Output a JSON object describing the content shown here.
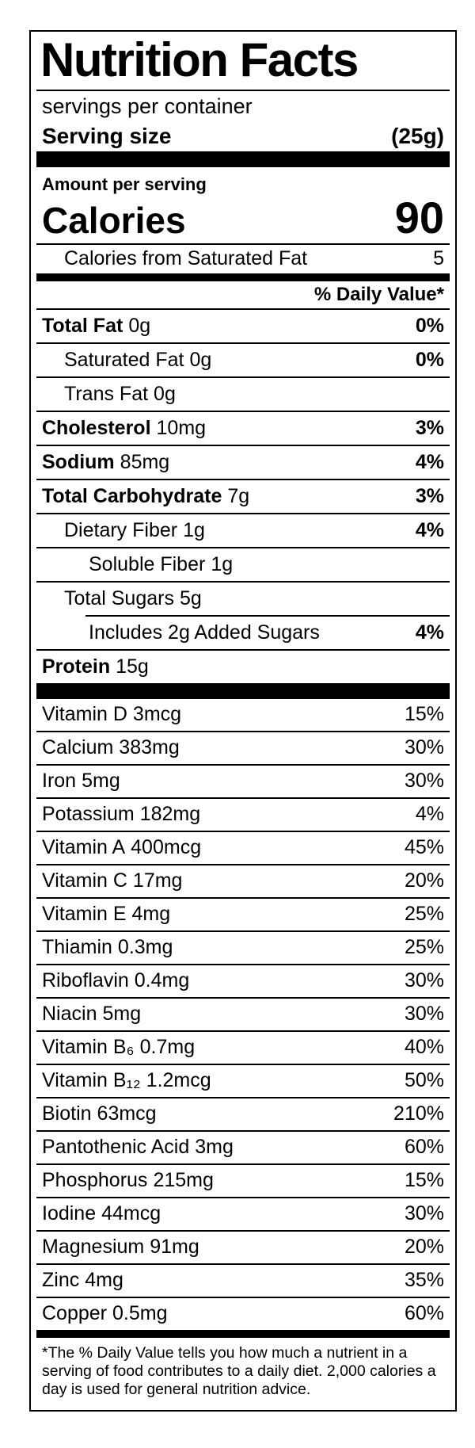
{
  "label": {
    "title": "Nutrition Facts",
    "servings_per_container": "servings per container",
    "serving_size_label": "Serving size",
    "serving_size_value": "(25g)",
    "amount_per_serving": "Amount per serving",
    "calories_label": "Calories",
    "calories_value": "90",
    "calories_sub_label": "Calories from Saturated Fat",
    "calories_sub_value": "5",
    "daily_value_header": "% Daily Value*",
    "nutrients": [
      {
        "name": "Total Fat",
        "amount": "0g",
        "dv": "0%",
        "bold": true,
        "indent": 0
      },
      {
        "name": "Saturated Fat",
        "amount": "0g",
        "dv": "0%",
        "bold": false,
        "indent": 1
      },
      {
        "name": "Trans Fat",
        "amount": "0g",
        "dv": "",
        "bold": false,
        "indent": 1
      },
      {
        "name": "Cholesterol",
        "amount": "10mg",
        "dv": "3%",
        "bold": true,
        "indent": 0
      },
      {
        "name": "Sodium",
        "amount": "85mg",
        "dv": "4%",
        "bold": true,
        "indent": 0
      },
      {
        "name": "Total Carbohydrate",
        "amount": "7g",
        "dv": "3%",
        "bold": true,
        "indent": 0
      },
      {
        "name": "Dietary Fiber",
        "amount": "1g",
        "dv": "4%",
        "bold": false,
        "indent": 1
      },
      {
        "name": "Soluble Fiber",
        "amount": "1g",
        "dv": "",
        "bold": false,
        "indent": 2
      },
      {
        "name": "Total Sugars",
        "amount": "5g",
        "dv": "",
        "bold": false,
        "indent": 1
      },
      {
        "name": "Includes 2g Added Sugars",
        "amount": "",
        "dv": "4%",
        "bold": false,
        "indent": 2,
        "partial_rule": true
      },
      {
        "name": "Protein",
        "amount": "15g",
        "dv": "",
        "bold": true,
        "indent": 0
      }
    ],
    "micronutrients": [
      {
        "name": "Vitamin D",
        "amount": "3mcg",
        "dv": "15%"
      },
      {
        "name": "Calcium",
        "amount": "383mg",
        "dv": "30%"
      },
      {
        "name": "Iron",
        "amount": "5mg",
        "dv": "30%"
      },
      {
        "name": "Potassium",
        "amount": "182mg",
        "dv": "4%"
      },
      {
        "name": "Vitamin A",
        "amount": "400mcg",
        "dv": "45%"
      },
      {
        "name": "Vitamin C",
        "amount": "17mg",
        "dv": "20%"
      },
      {
        "name": "Vitamin E",
        "amount": "4mg",
        "dv": "25%"
      },
      {
        "name": "Thiamin",
        "amount": "0.3mg",
        "dv": "25%"
      },
      {
        "name": "Riboflavin",
        "amount": "0.4mg",
        "dv": "30%"
      },
      {
        "name": "Niacin",
        "amount": "5mg",
        "dv": "30%"
      },
      {
        "name": "Vitamin B₆",
        "amount": "0.7mg",
        "dv": "40%"
      },
      {
        "name": "Vitamin B₁₂",
        "amount": "1.2mcg",
        "dv": "50%"
      },
      {
        "name": "Biotin",
        "amount": "63mcg",
        "dv": "210%"
      },
      {
        "name": "Pantothenic Acid",
        "amount": "3mg",
        "dv": "60%"
      },
      {
        "name": "Phosphorus",
        "amount": "215mg",
        "dv": "15%"
      },
      {
        "name": "Iodine",
        "amount": "44mcg",
        "dv": "30%"
      },
      {
        "name": "Magnesium",
        "amount": "91mg",
        "dv": "20%"
      },
      {
        "name": "Zinc",
        "amount": "4mg",
        "dv": "35%"
      },
      {
        "name": "Copper",
        "amount": "0.5mg",
        "dv": "60%"
      }
    ],
    "footnote": "*The % Daily Value tells you how much a nutrient in a serving of food contributes to a daily diet. 2,000 calories a day is used for general nutrition advice."
  }
}
